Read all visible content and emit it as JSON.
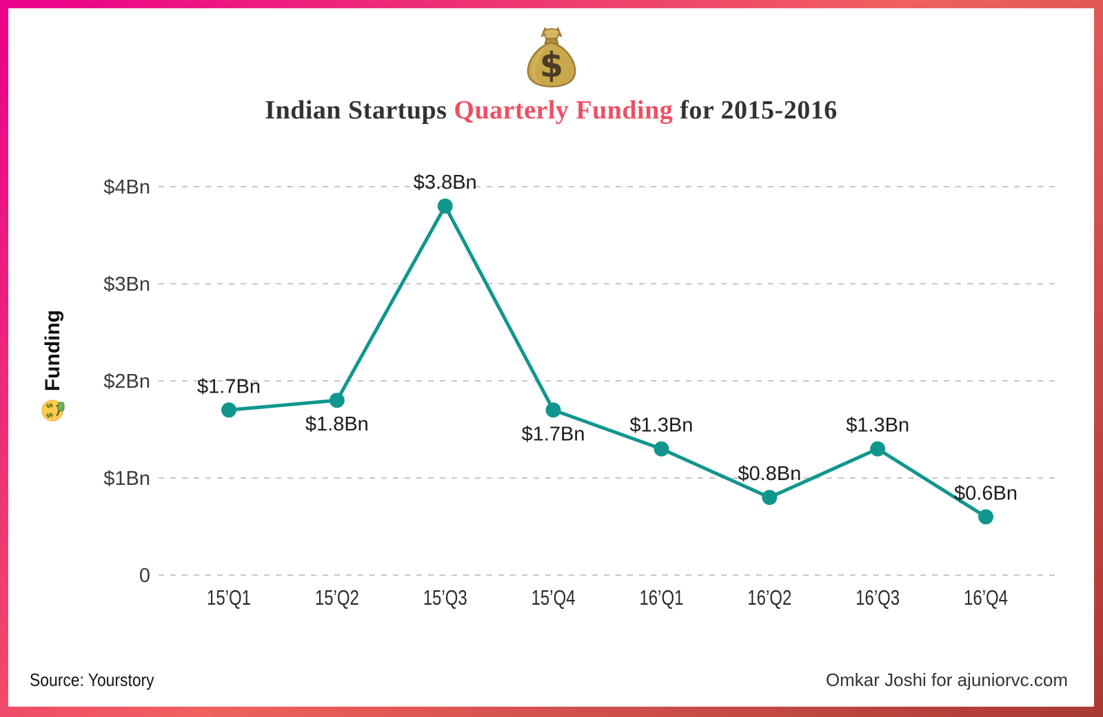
{
  "frame": {
    "gradient_colors": [
      "#ec008c",
      "#f0615f",
      "#a93a32"
    ]
  },
  "header": {
    "emoji": "money-bag",
    "title_part1": "Indian Startups ",
    "title_accent": "Quarterly Funding",
    "title_part2": " for 2015-2016",
    "accent_color": "#ef4f63"
  },
  "chart_data": {
    "type": "line",
    "title": "Indian Startups Quarterly Funding for 2015-2016",
    "categories": [
      "15’Q1",
      "15’Q2",
      "15’Q3",
      "15’Q4",
      "16’Q1",
      "16’Q2",
      "16’Q3",
      "16’Q4"
    ],
    "values": [
      1.7,
      1.8,
      3.8,
      1.7,
      1.3,
      0.8,
      1.3,
      0.6
    ],
    "point_labels": [
      "$1.7Bn",
      "$1.8Bn",
      "$3.8Bn",
      "$1.7Bn",
      "$1.3Bn",
      "$0.8Bn",
      "$1.3Bn",
      "$0.6Bn"
    ],
    "label_positions": [
      "above",
      "below",
      "above",
      "below",
      "above",
      "above",
      "above",
      "above"
    ],
    "xlabel": "",
    "ylabel": "Funding",
    "ylabel_emoji": "money-mouth-face",
    "y_ticks": [
      {
        "label": "$4Bn",
        "value": 4
      },
      {
        "label": "$3Bn",
        "value": 3
      },
      {
        "label": "$2Bn",
        "value": 2
      },
      {
        "label": "$1Bn",
        "value": 1
      },
      {
        "label": "0",
        "value": 0
      }
    ],
    "ylim": [
      0,
      4
    ],
    "grid": "horizontal-dashed",
    "legend": "none",
    "line_color": "#11968e",
    "marker_color": "#11968e"
  },
  "footer": {
    "source": "Source: Yourstory",
    "credit": "Omkar Joshi for ajuniorvc.com"
  }
}
